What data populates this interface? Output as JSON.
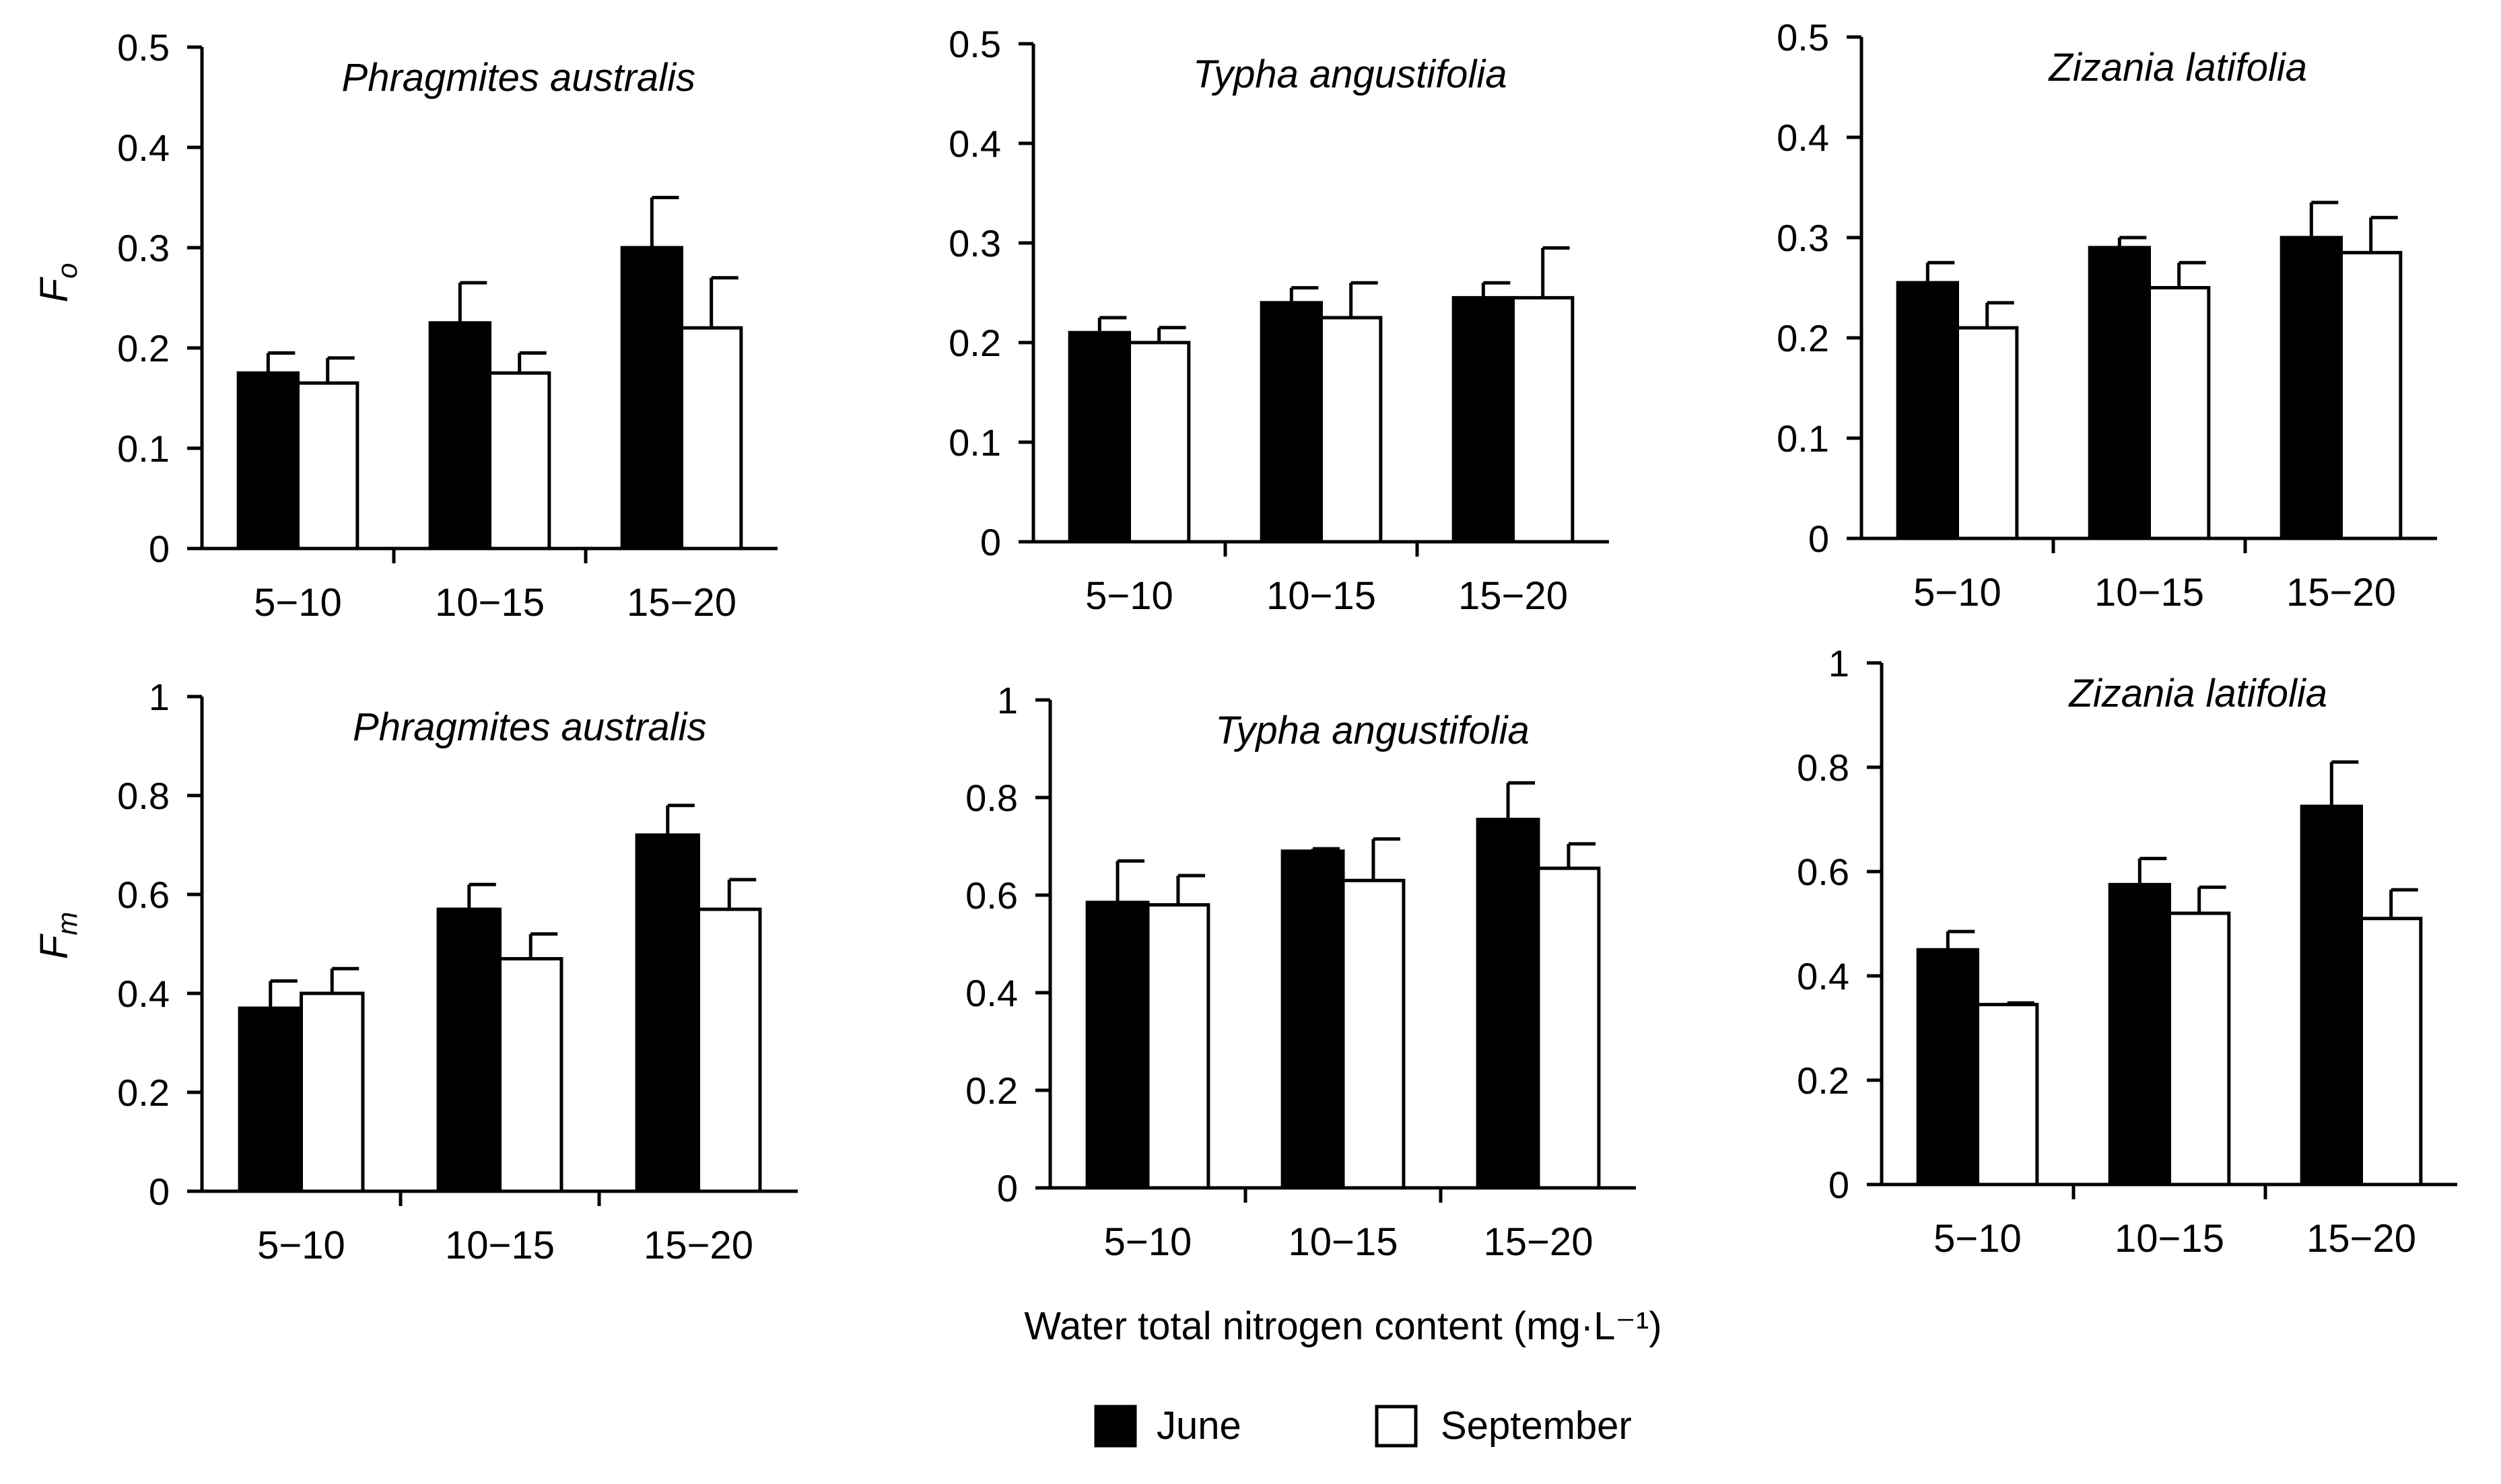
{
  "legend": {
    "items": [
      {
        "label": "June",
        "color": "#000000"
      },
      {
        "label": "September",
        "color": "#ffffff"
      }
    ],
    "placement": "bottom-center"
  },
  "x_axis_label": "Water total nitrogen content (mg·L⁻¹)",
  "y_axis_labels": {
    "row1_main": "F",
    "row1_sub": "o",
    "row2_main": "F",
    "row2_sub": "m"
  },
  "chart_data": [
    {
      "type": "bar",
      "title": "Phragmites australis",
      "categories": [
        "5−10",
        "10−15",
        "15−20"
      ],
      "ylim": [
        0,
        0.5
      ],
      "yticks": [
        "0",
        "0.1",
        "0.2",
        "0.3",
        "0.4",
        "0.5"
      ],
      "series": [
        {
          "name": "June",
          "values": [
            0.175,
            0.225,
            0.3
          ],
          "errors": [
            0.02,
            0.04,
            0.05
          ]
        },
        {
          "name": "September",
          "values": [
            0.165,
            0.175,
            0.22
          ],
          "errors": [
            0.025,
            0.02,
            0.05
          ]
        }
      ]
    },
    {
      "type": "bar",
      "title": "Typha angustifolia",
      "categories": [
        "5−10",
        "10−15",
        "15−20"
      ],
      "ylim": [
        0,
        0.5
      ],
      "yticks": [
        "0",
        "0.1",
        "0.2",
        "0.3",
        "0.4",
        "0.5"
      ],
      "series": [
        {
          "name": "June",
          "values": [
            0.21,
            0.24,
            0.245
          ],
          "errors": [
            0.015,
            0.015,
            0.015
          ]
        },
        {
          "name": "September",
          "values": [
            0.2,
            0.225,
            0.245
          ],
          "errors": [
            0.015,
            0.035,
            0.05
          ]
        }
      ]
    },
    {
      "type": "bar",
      "title": "Zizania latifolia",
      "categories": [
        "5−10",
        "10−15",
        "15−20"
      ],
      "ylim": [
        0,
        0.5
      ],
      "yticks": [
        "0",
        "0.1",
        "0.2",
        "0.3",
        "0.4",
        "0.5"
      ],
      "series": [
        {
          "name": "June",
          "values": [
            0.255,
            0.29,
            0.3
          ],
          "errors": [
            0.02,
            0.01,
            0.035
          ]
        },
        {
          "name": "September",
          "values": [
            0.21,
            0.25,
            0.285
          ],
          "errors": [
            0.025,
            0.025,
            0.035
          ]
        }
      ]
    },
    {
      "type": "bar",
      "title": "Phragmites australis",
      "categories": [
        "5−10",
        "10−15",
        "15−20"
      ],
      "ylim": [
        0,
        1
      ],
      "yticks": [
        "0",
        "0.2",
        "0.4",
        "0.6",
        "0.8",
        "1"
      ],
      "series": [
        {
          "name": "June",
          "values": [
            0.37,
            0.57,
            0.72
          ],
          "errors": [
            0.055,
            0.05,
            0.06
          ]
        },
        {
          "name": "September",
          "values": [
            0.4,
            0.47,
            0.57
          ],
          "errors": [
            0.05,
            0.05,
            0.06
          ]
        }
      ]
    },
    {
      "type": "bar",
      "title": "Typha angustifolia",
      "categories": [
        "5−10",
        "10−15",
        "15−20"
      ],
      "ylim": [
        0,
        1
      ],
      "yticks": [
        "0",
        "0.2",
        "0.4",
        "0.6",
        "0.8",
        "1"
      ],
      "series": [
        {
          "name": "June",
          "values": [
            0.585,
            0.69,
            0.755
          ],
          "errors": [
            0.085,
            0.005,
            0.075
          ]
        },
        {
          "name": "September",
          "values": [
            0.58,
            0.63,
            0.655
          ],
          "errors": [
            0.06,
            0.085,
            0.05
          ]
        }
      ]
    },
    {
      "type": "bar",
      "title": "Zizania latifolia",
      "categories": [
        "5−10",
        "10−15",
        "15−20"
      ],
      "ylim": [
        0,
        1
      ],
      "yticks": [
        "0",
        "0.2",
        "0.4",
        "0.6",
        "0.8",
        "1"
      ],
      "series": [
        {
          "name": "June",
          "values": [
            0.45,
            0.575,
            0.725
          ],
          "errors": [
            0.035,
            0.05,
            0.085
          ]
        },
        {
          "name": "September",
          "values": [
            0.345,
            0.52,
            0.51
          ],
          "errors": [
            0.003,
            0.05,
            0.055
          ]
        }
      ]
    }
  ]
}
